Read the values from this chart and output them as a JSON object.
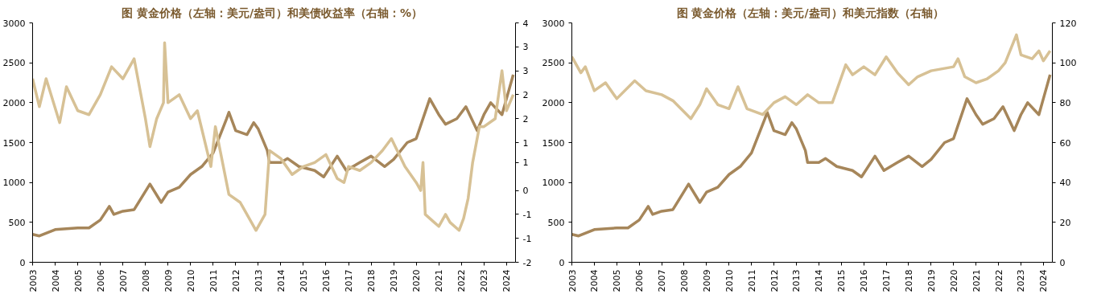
{
  "chart_data": [
    {
      "type": "line",
      "title": "图  黄金价格（左轴：美元/盎司）和美债收益率（右轴：%）",
      "xlim": [
        2003,
        2024.4
      ],
      "xticks": [
        2003,
        2004,
        2005,
        2006,
        2007,
        2008,
        2009,
        2010,
        2011,
        2012,
        2013,
        2014,
        2015,
        2016,
        2017,
        2018,
        2019,
        2020,
        2021,
        2022,
        2023,
        2024
      ],
      "ylim": [
        0,
        3000
      ],
      "yticks": [
        0,
        500,
        1000,
        1500,
        2000,
        2500,
        3000
      ],
      "y2lim": [
        -2,
        4
      ],
      "y2ticks": [
        {
          "value": -2,
          "label": "-2"
        },
        {
          "value": -1.4,
          "label": "-1"
        },
        {
          "value": -0.8,
          "label": "-1"
        },
        {
          "value": -0.2,
          "label": "0"
        },
        {
          "value": 0.5,
          "label": "1"
        },
        {
          "value": 1.0,
          "label": "1"
        },
        {
          "value": 1.6,
          "label": "2"
        },
        {
          "value": 2.2,
          "label": "2"
        },
        {
          "value": 2.8,
          "label": "3"
        },
        {
          "value": 3.4,
          "label": "3"
        },
        {
          "value": 4,
          "label": "4"
        }
      ],
      "grid": false,
      "series": [
        {
          "color": "#a6865a",
          "x": [
            2003,
            2003.3,
            2004,
            2005,
            2005.5,
            2006,
            2006.4,
            2006.6,
            2007,
            2007.5,
            2008.2,
            2008.7,
            2009,
            2009.5,
            2010,
            2010.5,
            2011,
            2011.6,
            2011.7,
            2012,
            2012.5,
            2012.8,
            2013,
            2013.4,
            2013.5,
            2014,
            2014.3,
            2014.8,
            2015.5,
            2015.9,
            2016.5,
            2016.9,
            2017.5,
            2018,
            2018.6,
            2019,
            2019.6,
            2020,
            2020.6,
            2021,
            2021.3,
            2021.8,
            2022.2,
            2022.7,
            2023,
            2023.3,
            2023.8,
            2024,
            2024.3
          ],
          "values": [
            350,
            330,
            410,
            430,
            430,
            530,
            700,
            600,
            640,
            660,
            980,
            750,
            880,
            940,
            1100,
            1200,
            1370,
            1800,
            1880,
            1650,
            1600,
            1750,
            1670,
            1400,
            1250,
            1250,
            1300,
            1200,
            1150,
            1070,
            1330,
            1150,
            1250,
            1330,
            1200,
            1290,
            1500,
            1550,
            2050,
            1850,
            1730,
            1800,
            1950,
            1650,
            1850,
            2000,
            1850,
            2050,
            2350
          ]
        },
        {
          "color": "#d7c195",
          "axis": "y2",
          "x": [
            2003,
            2003.3,
            2003.6,
            2004.2,
            2004.5,
            2005,
            2005.5,
            2006,
            2006.5,
            2007,
            2007.5,
            2008,
            2008.2,
            2008.5,
            2008.8,
            2008.85,
            2009,
            2009.5,
            2010,
            2010.3,
            2010.9,
            2011.1,
            2011.7,
            2012.2,
            2012.9,
            2013.3,
            2013.4,
            2013.5,
            2014,
            2014.5,
            2015,
            2015.5,
            2016,
            2016.5,
            2016.8,
            2017,
            2017.5,
            2018,
            2018.5,
            2018.9,
            2019.5,
            2020,
            2020.2,
            2020.3,
            2020.4,
            2020.8,
            2021,
            2021.3,
            2021.5,
            2021.9,
            2022.1,
            2022.3,
            2022.5,
            2022.8,
            2023,
            2023.5,
            2023.8,
            2024,
            2024.3
          ],
          "values": [
            2.6,
            1.9,
            2.6,
            1.5,
            2.4,
            1.8,
            1.7,
            2.2,
            2.9,
            2.6,
            3.1,
            1.6,
            0.9,
            1.6,
            2.0,
            3.5,
            2.0,
            2.2,
            1.6,
            1.8,
            0.4,
            1.4,
            -0.3,
            -0.5,
            -1.2,
            -0.8,
            0.0,
            0.8,
            0.6,
            0.2,
            0.4,
            0.5,
            0.7,
            0.1,
            0.0,
            0.4,
            0.3,
            0.5,
            0.8,
            1.1,
            0.4,
            0.0,
            -0.2,
            0.5,
            -0.8,
            -1.0,
            -1.1,
            -0.8,
            -1.0,
            -1.2,
            -0.9,
            -0.4,
            0.5,
            1.4,
            1.4,
            1.6,
            2.8,
            1.8,
            2.2
          ]
        }
      ]
    },
    {
      "type": "line",
      "title": "图  黄金价格（左轴：美元/盎司）和美元指数（右轴）",
      "xlim": [
        2003,
        2024.4
      ],
      "xticks": [
        2003,
        2004,
        2005,
        2006,
        2007,
        2008,
        2009,
        2010,
        2011,
        2012,
        2013,
        2014,
        2015,
        2016,
        2017,
        2018,
        2019,
        2020,
        2021,
        2022,
        2023,
        2024
      ],
      "ylim": [
        0,
        3000
      ],
      "yticks": [
        0,
        500,
        1000,
        1500,
        2000,
        2500,
        3000
      ],
      "y2lim": [
        0,
        120
      ],
      "y2ticks": [
        0,
        20,
        40,
        60,
        80,
        100,
        120
      ],
      "grid": false,
      "series": [
        {
          "color": "#a6865a",
          "x": [
            2003,
            2003.3,
            2004,
            2005,
            2005.5,
            2006,
            2006.4,
            2006.6,
            2007,
            2007.5,
            2008.2,
            2008.7,
            2009,
            2009.5,
            2010,
            2010.5,
            2011,
            2011.6,
            2011.7,
            2012,
            2012.5,
            2012.8,
            2013,
            2013.4,
            2013.5,
            2014,
            2014.3,
            2014.8,
            2015.5,
            2015.9,
            2016.5,
            2016.9,
            2017.5,
            2018,
            2018.6,
            2019,
            2019.6,
            2020,
            2020.6,
            2021,
            2021.3,
            2021.8,
            2022.2,
            2022.7,
            2023,
            2023.3,
            2023.8,
            2024,
            2024.3
          ],
          "values": [
            350,
            330,
            410,
            430,
            430,
            530,
            700,
            600,
            640,
            660,
            980,
            750,
            880,
            940,
            1100,
            1200,
            1370,
            1800,
            1880,
            1650,
            1600,
            1750,
            1670,
            1400,
            1250,
            1250,
            1300,
            1200,
            1150,
            1070,
            1330,
            1150,
            1250,
            1330,
            1200,
            1290,
            1500,
            1550,
            2050,
            1850,
            1730,
            1800,
            1950,
            1650,
            1850,
            2000,
            1850,
            2050,
            2350
          ]
        },
        {
          "color": "#d7c195",
          "axis": "y2",
          "x": [
            2003,
            2003.4,
            2003.6,
            2004,
            2004.5,
            2005,
            2005.8,
            2006.3,
            2007,
            2007.5,
            2008.3,
            2008.7,
            2009,
            2009.5,
            2010,
            2010.4,
            2010.8,
            2011.5,
            2012,
            2012.5,
            2013,
            2013.5,
            2014,
            2014.6,
            2015.2,
            2015.5,
            2016,
            2016.5,
            2017,
            2017.5,
            2018,
            2018.4,
            2019,
            2019.5,
            2020,
            2020.2,
            2020.5,
            2021,
            2021.5,
            2022,
            2022.3,
            2022.8,
            2023,
            2023.5,
            2023.8,
            2024,
            2024.3
          ],
          "values": [
            103,
            95,
            98,
            86,
            90,
            82,
            91,
            86,
            84,
            81,
            72,
            79,
            87,
            79,
            77,
            88,
            77,
            74,
            80,
            83,
            79,
            84,
            80,
            80,
            99,
            94,
            98,
            94,
            103,
            95,
            89,
            93,
            96,
            97,
            98,
            102,
            93,
            90,
            92,
            96,
            100,
            114,
            104,
            102,
            106,
            101,
            106
          ]
        }
      ]
    }
  ]
}
